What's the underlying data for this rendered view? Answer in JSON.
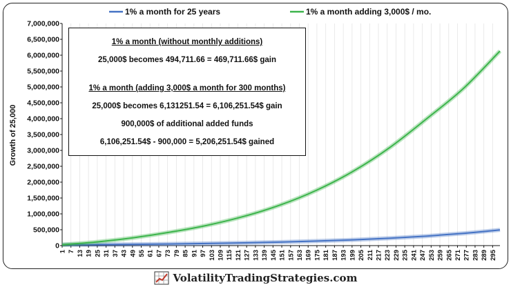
{
  "chart_data": {
    "type": "line",
    "ylabel": "Growth of 25,000",
    "xlabel": "",
    "ylim": [
      0,
      7000000
    ],
    "y_ticks": [
      0,
      500000,
      1000000,
      1500000,
      2000000,
      2500000,
      3000000,
      3500000,
      4000000,
      4500000,
      5000000,
      5500000,
      6000000,
      6500000,
      7000000
    ],
    "y_tick_labels": [
      "0",
      "500,000",
      "1,000,000",
      "1,500,000",
      "2,000,000",
      "2,500,000",
      "3,000,000",
      "3,500,000",
      "4,000,000",
      "4,500,000",
      "5,000,000",
      "5,500,000",
      "6,000,000",
      "6,500,000",
      "7,000,000"
    ],
    "x_range": [
      1,
      300
    ],
    "x_tick_labels": [
      "1",
      "7",
      "13",
      "19",
      "25",
      "31",
      "37",
      "43",
      "49",
      "55",
      "61",
      "67",
      "73",
      "79",
      "85",
      "91",
      "97",
      "103",
      "109",
      "115",
      "121",
      "127",
      "133",
      "139",
      "145",
      "151",
      "157",
      "163",
      "169",
      "175",
      "181",
      "187",
      "193",
      "199",
      "205",
      "211",
      "217",
      "223",
      "229",
      "235",
      "241",
      "247",
      "253",
      "259",
      "265",
      "271",
      "277",
      "283",
      "289",
      "295"
    ],
    "grid": "vertical",
    "legend_position": "top",
    "series": [
      {
        "name": "1% a month for 25 years",
        "color": "#4472c4",
        "x": [
          1,
          25,
          50,
          75,
          100,
          125,
          150,
          175,
          200,
          225,
          250,
          275,
          300
        ],
        "values": [
          25250,
          32058,
          41114,
          52729,
          67627,
          86731,
          111233,
          142655,
          182955,
          234639,
          300925,
          385935,
          494712
        ]
      },
      {
        "name": "1% a month adding 3,000$ / mo.",
        "color": "#3cb44b",
        "x": [
          1,
          25,
          50,
          75,
          100,
          125,
          150,
          175,
          200,
          225,
          250,
          275,
          300
        ],
        "values": [
          28250,
          117000,
          250000,
          425000,
          640000,
          920000,
          1280000,
          1750000,
          2350000,
          3100000,
          4000000,
          4950000,
          6131252
        ]
      }
    ]
  },
  "annotation": {
    "line1": "1% a month   (without monthly additions)",
    "line2": "25,000$ becomes 494,711.66  =  469,711.66$ gain",
    "line3": "1% a month   (adding 3,000$ a month for 300 months)",
    "line4": "25,000$ becomes 6,131251.54  =  6,106,251.54$ gain",
    "line5": "900,000$ of additional added funds",
    "line6": "6,106,251.54$  -  900,000  =  5,206,251.54$ gained"
  },
  "footer": {
    "logo_icon": "chart-grid-logo-icon",
    "text": "VolatilityTradingStrategies.com"
  }
}
